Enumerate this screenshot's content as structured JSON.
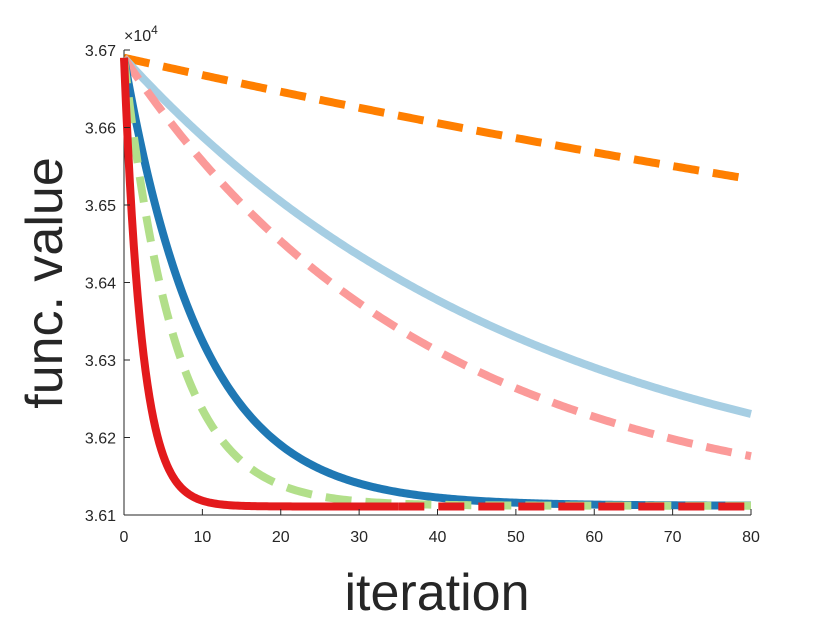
{
  "chart_data": {
    "type": "line",
    "title": "",
    "xlabel": "iteration",
    "ylabel": "func. value",
    "xlim": [
      0,
      80
    ],
    "ylim": [
      36100,
      36700
    ],
    "xticks": [
      "0",
      "10",
      "20",
      "30",
      "40",
      "50",
      "60",
      "70",
      "80"
    ],
    "yticks": [
      "3.61",
      "3.62",
      "3.63",
      "3.64",
      "3.65",
      "3.66",
      "3.67"
    ],
    "y_exponent_base": "×10",
    "y_exponent_power": "4",
    "grid": false,
    "legend": "none",
    "series": [
      {
        "name": "orange-dashed",
        "color": "#ff7f00",
        "style": "dashed",
        "start": 36690,
        "end": 36100,
        "tau": 259,
        "x_end": 80
      },
      {
        "name": "lightblue-solid",
        "color": "#a6cee3",
        "style": "solid",
        "start": 36690,
        "end": 36100,
        "tau": 53,
        "x_end": 80
      },
      {
        "name": "pink-dashed",
        "color": "#fb9a99",
        "style": "dashed",
        "start": 36690,
        "end": 36100,
        "tau": 39,
        "x_end": 80
      },
      {
        "name": "blue-solid",
        "color": "#1f78b4",
        "style": "solid",
        "start": 36690,
        "end": 36112,
        "tau": 10,
        "x_end": 80
      },
      {
        "name": "green-dashed",
        "color": "#b2df8a",
        "style": "dashed",
        "start": 36690,
        "end": 36112,
        "tau": 6.5,
        "x_end": 80
      },
      {
        "name": "red-solid",
        "color": "#e31a1c",
        "style": "solid",
        "start": 36690,
        "end": 36111,
        "tau": 2.3,
        "x_end": 35
      },
      {
        "name": "red-dashed",
        "color": "#e31a1c",
        "style": "dashed",
        "start": 36111,
        "end": 36111,
        "tau": 1,
        "x_start": 35,
        "x_end": 80
      }
    ]
  }
}
